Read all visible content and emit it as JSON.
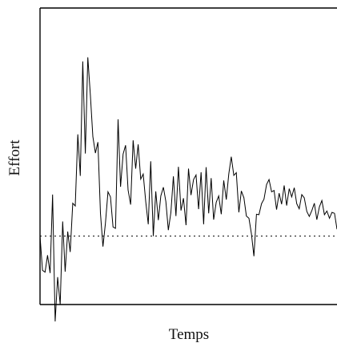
{
  "chart_data": {
    "type": "line",
    "xlabel": "Temps",
    "ylabel": "Effort",
    "xlim": [
      0,
      100
    ],
    "ylim": [
      -15,
      50
    ],
    "grid": false,
    "legend": "none",
    "baseline": 0,
    "baseline_style": "dotted",
    "series": [
      {
        "values": [
          0,
          -7.5,
          -7.9,
          -4.2,
          -8.1,
          9.1,
          -18.7,
          -9.0,
          -15.0,
          3.2,
          -7.8,
          1.0,
          -3.5,
          7.2,
          6.6,
          22.3,
          13.2,
          38.3,
          18.1,
          39.2,
          30.9,
          21.8,
          18.2,
          20.6,
          5.0,
          -2.3,
          2.8,
          9.7,
          8.6,
          2.0,
          1.7,
          25.6,
          10.8,
          18.0,
          19.9,
          10.1,
          6.9,
          21.0,
          14.8,
          20.1,
          12.5,
          13.6,
          7.5,
          2.6,
          16.4,
          0.0,
          9.8,
          3.5,
          8.8,
          10.7,
          7.6,
          1.3,
          5.2,
          13.1,
          4.4,
          15.2,
          5.6,
          8.3,
          2.4,
          14.8,
          9.0,
          12.4,
          13.4,
          5.9,
          14.0,
          2.6,
          15.1,
          5.0,
          12.7,
          3.6,
          7.4,
          8.8,
          4.8,
          12.2,
          8.0,
          13.6,
          17.4,
          13.3,
          13.9,
          5.2,
          9.9,
          8.4,
          4.4,
          3.9,
          0.5,
          -4.4,
          4.8,
          4.7,
          7.1,
          8.1,
          11.3,
          12.4,
          9.7,
          10.0,
          5.8,
          9.4,
          7.0,
          11.1,
          6.7,
          10.4,
          8.6,
          10.6,
          7.1,
          6.0,
          9.1,
          8.4,
          5.4,
          4.3,
          5.6,
          7.2,
          3.6,
          6.4,
          7.8,
          4.7,
          5.5,
          3.9,
          5.2,
          5.0,
          1.5
        ]
      }
    ]
  }
}
